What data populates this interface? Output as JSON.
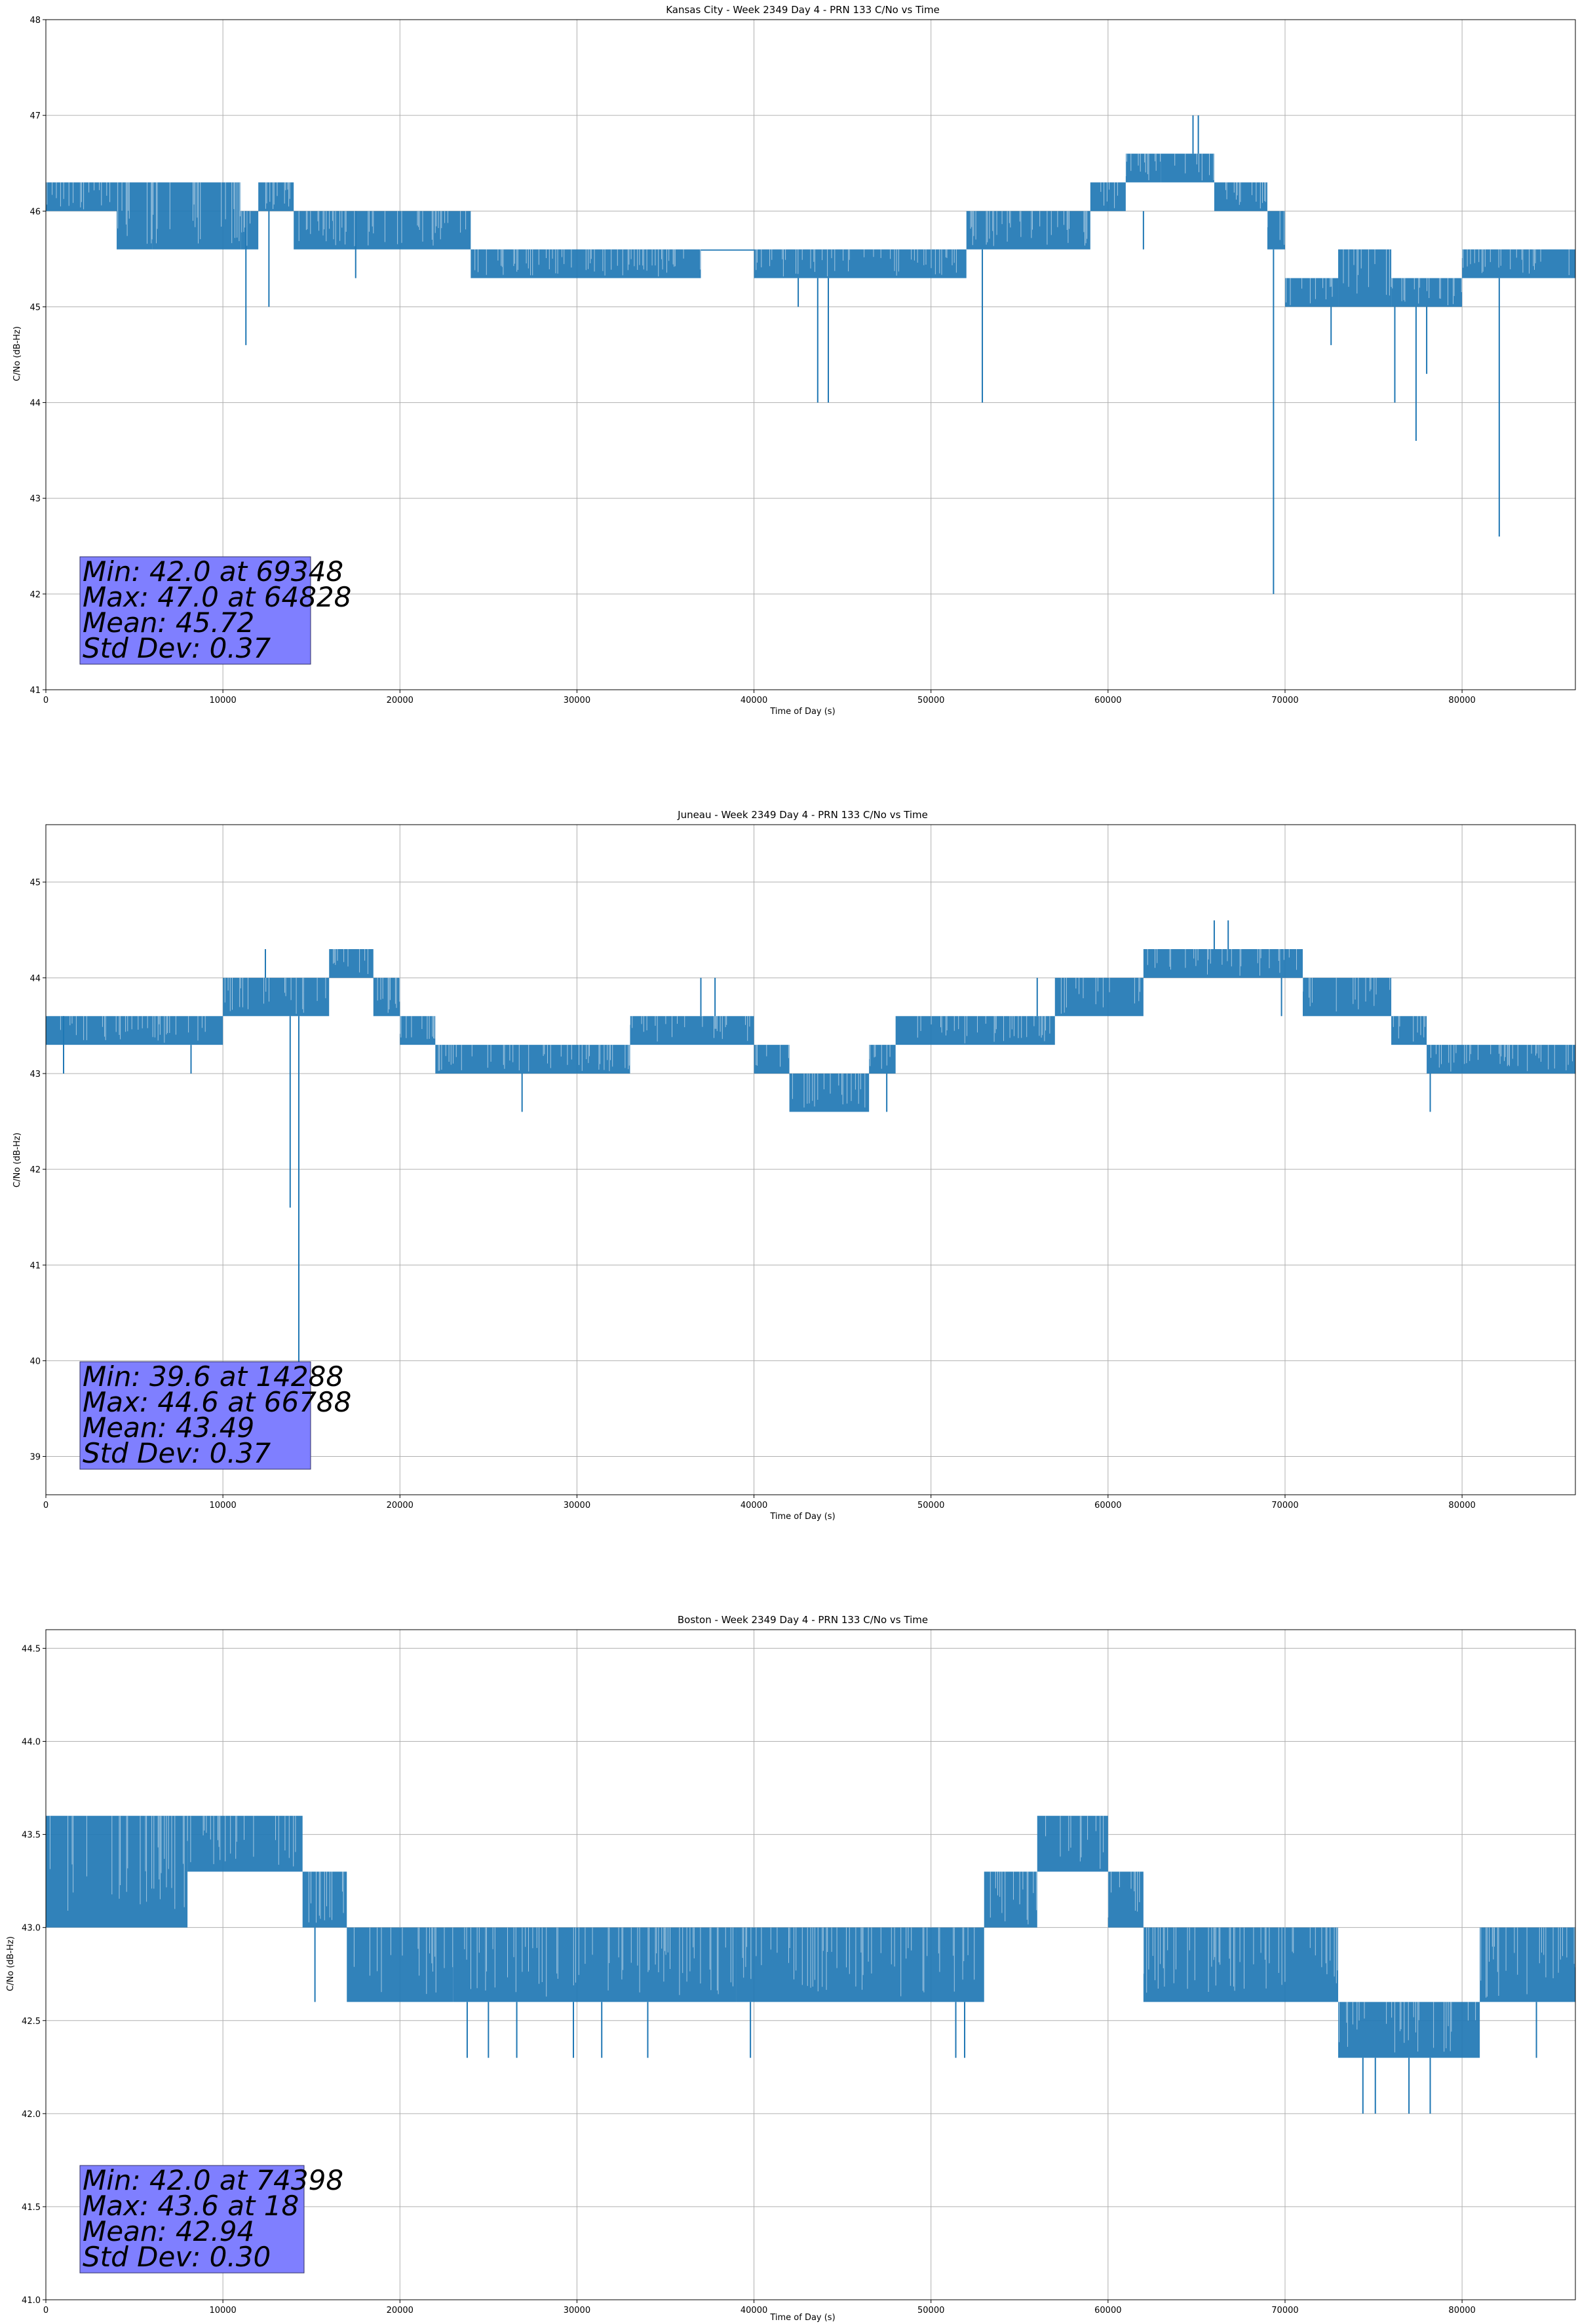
{
  "colors": {
    "series": "#1f77b4",
    "grid": "#b0b0b0",
    "stats_box": "#7f7fff"
  },
  "chart_data": [
    {
      "type": "line",
      "title": "Kansas City - Week 2349 Day 4 - PRN 133 C/No vs Time",
      "xlabel": "Time of Day (s)",
      "ylabel": "C/No (dB-Hz)",
      "xlim": [
        0,
        86400
      ],
      "ylim": [
        41,
        48
      ],
      "grid": true,
      "xticks": [
        "0",
        "10000",
        "20000",
        "30000",
        "40000",
        "50000",
        "60000",
        "70000",
        "80000"
      ],
      "yticks": [
        "41",
        "42",
        "43",
        "44",
        "45",
        "46",
        "47",
        "48"
      ],
      "stats": [
        "Min: 42.0 at 69348",
        "Max: 47.0 at 64828",
        "Mean: 45.72",
        "Std Dev: 0.37"
      ],
      "series": [
        {
          "segments": [
            {
              "x": [
                0,
                4000
              ],
              "values": [
                46.0,
                46.3
              ]
            },
            {
              "x": [
                4000,
                6000
              ],
              "values": [
                45.6,
                46.3
              ]
            },
            {
              "x": [
                6000,
                11000
              ],
              "values": [
                45.6,
                46.3
              ]
            },
            {
              "x": [
                11000,
                12000
              ],
              "values": [
                45.6,
                46.0
              ]
            },
            {
              "x": [
                12000,
                14000
              ],
              "values": [
                46.0,
                46.3
              ]
            },
            {
              "x": [
                14000,
                24000
              ],
              "values": [
                45.6,
                46.0
              ]
            },
            {
              "x": [
                24000,
                37000
              ],
              "values": [
                45.3,
                45.6
              ]
            },
            {
              "x": [
                37000,
                40000
              ],
              "values": [
                45.6,
                45.6
              ]
            },
            {
              "x": [
                40000,
                52000
              ],
              "values": [
                45.3,
                45.6
              ]
            },
            {
              "x": [
                52000,
                59000
              ],
              "values": [
                45.6,
                46.0
              ]
            },
            {
              "x": [
                59000,
                61000
              ],
              "values": [
                46.0,
                46.3
              ]
            },
            {
              "x": [
                61000,
                63000
              ],
              "values": [
                46.3,
                46.6
              ]
            },
            {
              "x": [
                63000,
                66000
              ],
              "values": [
                46.3,
                46.6
              ]
            },
            {
              "x": [
                66000,
                69000
              ],
              "values": [
                46.0,
                46.3
              ]
            },
            {
              "x": [
                69000,
                70000
              ],
              "values": [
                45.6,
                46.0
              ]
            },
            {
              "x": [
                70000,
                73000
              ],
              "values": [
                45.0,
                45.3
              ]
            },
            {
              "x": [
                73000,
                76000
              ],
              "values": [
                45.0,
                45.6
              ]
            },
            {
              "x": [
                76000,
                80000
              ],
              "values": [
                45.0,
                45.3
              ]
            },
            {
              "x": [
                80000,
                86400
              ],
              "values": [
                45.3,
                45.6
              ]
            }
          ],
          "spikes": [
            {
              "x": 11300,
              "values": [
                46.0,
                44.6
              ]
            },
            {
              "x": 12600,
              "values": [
                46.0,
                45.0
              ]
            },
            {
              "x": 17500,
              "values": [
                46.0,
                45.3
              ]
            },
            {
              "x": 42500,
              "values": [
                45.3,
                45.0
              ]
            },
            {
              "x": 43600,
              "values": [
                45.3,
                44.0
              ]
            },
            {
              "x": 44200,
              "values": [
                45.3,
                44.0
              ]
            },
            {
              "x": 52900,
              "values": [
                45.6,
                44.0
              ]
            },
            {
              "x": 62000,
              "values": [
                46.0,
                45.6
              ]
            },
            {
              "x": 64800,
              "values": [
                46.6,
                47.0
              ]
            },
            {
              "x": 65100,
              "values": [
                46.6,
                47.0
              ]
            },
            {
              "x": 69348,
              "values": [
                45.6,
                42.0
              ]
            },
            {
              "x": 72600,
              "values": [
                45.0,
                44.6
              ]
            },
            {
              "x": 76200,
              "values": [
                45.0,
                44.0
              ]
            },
            {
              "x": 77400,
              "values": [
                45.0,
                43.6
              ]
            },
            {
              "x": 78000,
              "values": [
                45.0,
                44.3
              ]
            },
            {
              "x": 82100,
              "values": [
                45.3,
                42.6
              ]
            }
          ]
        }
      ]
    },
    {
      "type": "line",
      "title": "Juneau - Week 2349 Day 4 - PRN 133 C/No vs Time",
      "xlabel": "Time of Day (s)",
      "ylabel": "C/No (dB-Hz)",
      "xlim": [
        0,
        86400
      ],
      "ylim": [
        38.6,
        45.6
      ],
      "grid": true,
      "xticks": [
        "0",
        "10000",
        "20000",
        "30000",
        "40000",
        "50000",
        "60000",
        "70000",
        "80000"
      ],
      "yticks": [
        "39",
        "40",
        "41",
        "42",
        "43",
        "44",
        "45"
      ],
      "stats": [
        "Min: 39.6 at 14288",
        "Max: 44.6 at 66788",
        "Mean: 43.49",
        "Std Dev: 0.37"
      ],
      "series": [
        {
          "segments": [
            {
              "x": [
                0,
                10000
              ],
              "values": [
                43.3,
                43.6
              ]
            },
            {
              "x": [
                10000,
                16000
              ],
              "values": [
                43.6,
                44.0
              ]
            },
            {
              "x": [
                16000,
                18500
              ],
              "values": [
                44.0,
                44.3
              ]
            },
            {
              "x": [
                18500,
                20000
              ],
              "values": [
                43.6,
                44.0
              ]
            },
            {
              "x": [
                20000,
                22000
              ],
              "values": [
                43.3,
                43.6
              ]
            },
            {
              "x": [
                22000,
                33000
              ],
              "values": [
                43.0,
                43.3
              ]
            },
            {
              "x": [
                33000,
                40000
              ],
              "values": [
                43.3,
                43.6
              ]
            },
            {
              "x": [
                40000,
                42000
              ],
              "values": [
                43.0,
                43.3
              ]
            },
            {
              "x": [
                42000,
                46500
              ],
              "values": [
                42.6,
                43.0
              ]
            },
            {
              "x": [
                46500,
                48000
              ],
              "values": [
                43.0,
                43.3
              ]
            },
            {
              "x": [
                48000,
                57000
              ],
              "values": [
                43.3,
                43.6
              ]
            },
            {
              "x": [
                57000,
                62000
              ],
              "values": [
                43.6,
                44.0
              ]
            },
            {
              "x": [
                62000,
                71000
              ],
              "values": [
                44.0,
                44.3
              ]
            },
            {
              "x": [
                71000,
                76000
              ],
              "values": [
                43.6,
                44.0
              ]
            },
            {
              "x": [
                76000,
                78000
              ],
              "values": [
                43.3,
                43.6
              ]
            },
            {
              "x": [
                78000,
                86400
              ],
              "values": [
                43.0,
                43.3
              ]
            }
          ],
          "spikes": [
            {
              "x": 1000,
              "values": [
                43.6,
                43.0
              ]
            },
            {
              "x": 8200,
              "values": [
                43.3,
                43.0
              ]
            },
            {
              "x": 12400,
              "values": [
                44.0,
                44.3
              ]
            },
            {
              "x": 13800,
              "values": [
                43.6,
                41.6
              ]
            },
            {
              "x": 14288,
              "values": [
                43.6,
                39.6
              ]
            },
            {
              "x": 26900,
              "values": [
                43.0,
                42.6
              ]
            },
            {
              "x": 37000,
              "values": [
                43.6,
                44.0
              ]
            },
            {
              "x": 37800,
              "values": [
                43.6,
                44.0
              ]
            },
            {
              "x": 47500,
              "values": [
                43.0,
                42.6
              ]
            },
            {
              "x": 56000,
              "values": [
                43.6,
                44.0
              ]
            },
            {
              "x": 66000,
              "values": [
                44.3,
                44.6
              ]
            },
            {
              "x": 66788,
              "values": [
                44.3,
                44.6
              ]
            },
            {
              "x": 69800,
              "values": [
                44.0,
                43.6
              ]
            },
            {
              "x": 78200,
              "values": [
                43.0,
                42.6
              ]
            }
          ]
        }
      ]
    },
    {
      "type": "line",
      "title": "Boston - Week 2349 Day 4 - PRN 133 C/No vs Time",
      "xlabel": "Time of Day (s)",
      "ylabel": "C/No (dB-Hz)",
      "xlim": [
        0,
        86400
      ],
      "ylim": [
        41.0,
        44.6
      ],
      "grid": true,
      "xticks": [
        "0",
        "10000",
        "20000",
        "30000",
        "40000",
        "50000",
        "60000",
        "70000",
        "80000"
      ],
      "yticks": [
        "41.0",
        "41.5",
        "42.0",
        "42.5",
        "43.0",
        "43.5",
        "44.0",
        "44.5"
      ],
      "stats": [
        "Min: 42.0 at 74398",
        "Max: 43.6 at 18",
        "Mean: 42.94",
        "Std Dev: 0.30"
      ],
      "series": [
        {
          "segments": [
            {
              "x": [
                0,
                8000
              ],
              "values": [
                43.0,
                43.6
              ]
            },
            {
              "x": [
                8000,
                14500
              ],
              "values": [
                43.3,
                43.6
              ]
            },
            {
              "x": [
                14500,
                17000
              ],
              "values": [
                43.0,
                43.3
              ]
            },
            {
              "x": [
                17000,
                23000
              ],
              "values": [
                42.6,
                43.0
              ]
            },
            {
              "x": [
                23000,
                39000
              ],
              "values": [
                42.6,
                43.0
              ]
            },
            {
              "x": [
                39000,
                53000
              ],
              "values": [
                42.6,
                43.0
              ]
            },
            {
              "x": [
                53000,
                56000
              ],
              "values": [
                43.0,
                43.3
              ]
            },
            {
              "x": [
                56000,
                60000
              ],
              "values": [
                43.3,
                43.6
              ]
            },
            {
              "x": [
                60000,
                62000
              ],
              "values": [
                43.0,
                43.3
              ]
            },
            {
              "x": [
                62000,
                73000
              ],
              "values": [
                42.6,
                43.0
              ]
            },
            {
              "x": [
                73000,
                81000
              ],
              "values": [
                42.3,
                42.6
              ]
            },
            {
              "x": [
                81000,
                86400
              ],
              "values": [
                42.6,
                43.0
              ]
            }
          ],
          "spikes": [
            {
              "x": 15200,
              "values": [
                43.0,
                42.6
              ]
            },
            {
              "x": 23800,
              "values": [
                42.6,
                42.3
              ]
            },
            {
              "x": 25000,
              "values": [
                42.6,
                42.3
              ]
            },
            {
              "x": 26600,
              "values": [
                42.6,
                42.3
              ]
            },
            {
              "x": 29800,
              "values": [
                42.6,
                42.3
              ]
            },
            {
              "x": 31400,
              "values": [
                42.6,
                42.3
              ]
            },
            {
              "x": 34000,
              "values": [
                42.6,
                42.3
              ]
            },
            {
              "x": 39800,
              "values": [
                42.6,
                42.3
              ]
            },
            {
              "x": 51400,
              "values": [
                42.6,
                42.3
              ]
            },
            {
              "x": 51900,
              "values": [
                42.6,
                42.3
              ]
            },
            {
              "x": 74398,
              "values": [
                42.3,
                42.0
              ]
            },
            {
              "x": 75100,
              "values": [
                42.3,
                42.0
              ]
            },
            {
              "x": 77000,
              "values": [
                42.3,
                42.0
              ]
            },
            {
              "x": 78200,
              "values": [
                42.3,
                42.0
              ]
            },
            {
              "x": 84200,
              "values": [
                42.6,
                42.3
              ]
            }
          ]
        }
      ]
    }
  ]
}
